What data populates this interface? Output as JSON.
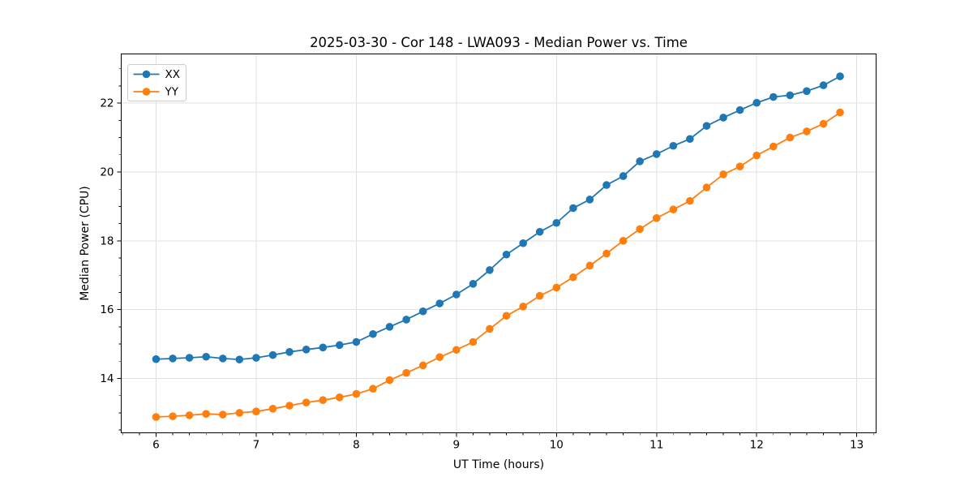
{
  "figure": {
    "title": "2025-03-30 - Cor 148 - LWA093 - Median Power vs. Time",
    "xlabel": "UT Time (hours)",
    "ylabel": "Median Power (CPU)"
  },
  "chart_data": {
    "type": "line",
    "title": "2025-03-30 - Cor 148 - LWA093 - Median Power vs. Time",
    "xlabel": "UT Time (hours)",
    "ylabel": "Median Power (CPU)",
    "xlim": [
      5.652,
      13.193
    ],
    "ylim": [
      12.42,
      23.43
    ],
    "xticks": [
      6,
      7,
      8,
      9,
      10,
      11,
      12,
      13
    ],
    "yticks": [
      14,
      16,
      18,
      20,
      22
    ],
    "x_minor_per_major": 6,
    "y_minor_step": 0.5,
    "grid": "major",
    "grid_color": "#e0e0e0",
    "legend_position": "upper-left",
    "x": [
      6.0,
      6.167,
      6.333,
      6.5,
      6.667,
      6.833,
      7.0,
      7.167,
      7.333,
      7.5,
      7.667,
      7.833,
      8.0,
      8.167,
      8.333,
      8.5,
      8.667,
      8.833,
      9.0,
      9.167,
      9.333,
      9.5,
      9.667,
      9.833,
      10.0,
      10.167,
      10.333,
      10.5,
      10.667,
      10.833,
      11.0,
      11.167,
      11.333,
      11.5,
      11.667,
      11.833,
      12.0,
      12.167,
      12.333,
      12.5,
      12.667,
      12.833
    ],
    "series": [
      {
        "name": "XX",
        "color": "#1f77b4",
        "values": [
          14.56,
          14.58,
          14.6,
          14.63,
          14.58,
          14.55,
          14.6,
          14.68,
          14.77,
          14.84,
          14.9,
          14.97,
          15.06,
          15.29,
          15.5,
          15.71,
          15.95,
          16.18,
          16.44,
          16.75,
          17.15,
          17.6,
          17.93,
          18.26,
          18.52,
          18.95,
          19.2,
          19.62,
          19.88,
          20.31,
          20.52,
          20.76,
          20.96,
          21.34,
          21.58,
          21.8,
          22.01,
          22.18,
          22.23,
          22.35,
          22.52,
          22.78
        ]
      },
      {
        "name": "YY",
        "color": "#ff7f0e",
        "values": [
          12.88,
          12.9,
          12.93,
          12.97,
          12.95,
          13.0,
          13.04,
          13.12,
          13.21,
          13.3,
          13.37,
          13.45,
          13.55,
          13.7,
          13.95,
          14.16,
          14.38,
          14.62,
          14.83,
          15.06,
          15.44,
          15.82,
          16.09,
          16.4,
          16.64,
          16.94,
          17.28,
          17.63,
          18.0,
          18.34,
          18.66,
          18.91,
          19.16,
          19.55,
          19.93,
          20.16,
          20.48,
          20.74,
          21.0,
          21.18,
          21.4,
          21.73
        ]
      }
    ]
  }
}
